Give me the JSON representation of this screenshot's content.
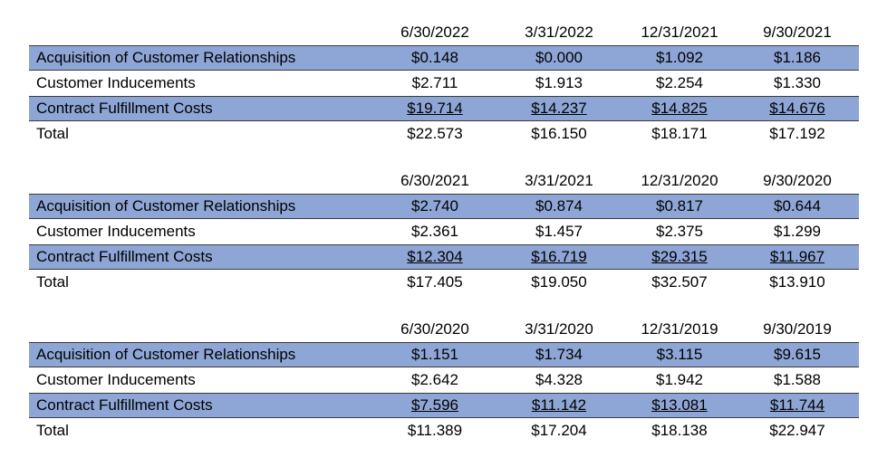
{
  "tables": [
    {
      "columns": [
        "6/30/2022",
        "3/31/2022",
        "12/31/2021",
        "9/30/2021"
      ],
      "rows": [
        {
          "label": "Acquisition of Customer Relationships",
          "values": [
            "$0.148",
            "$0.000",
            "$1.092",
            "$1.186"
          ]
        },
        {
          "label": "Customer Inducements",
          "values": [
            "$2.711",
            "$1.913",
            "$2.254",
            "$1.330"
          ]
        },
        {
          "label": "Contract Fulfillment Costs",
          "values": [
            "$19.714",
            "$14.237",
            "$14.825",
            "$14.676"
          ]
        },
        {
          "label": "Total",
          "values": [
            "$22.573",
            "$16.150",
            "$18.171",
            "$17.192"
          ]
        }
      ]
    },
    {
      "columns": [
        "6/30/2021",
        "3/31/2021",
        "12/31/2020",
        "9/30/2020"
      ],
      "rows": [
        {
          "label": "Acquisition of Customer Relationships",
          "values": [
            "$2.740",
            "$0.874",
            "$0.817",
            "$0.644"
          ]
        },
        {
          "label": "Customer Inducements",
          "values": [
            "$2.361",
            "$1.457",
            "$2.375",
            "$1.299"
          ]
        },
        {
          "label": "Contract Fulfillment Costs",
          "values": [
            "$12.304",
            "$16.719",
            "$29.315",
            "$11.967"
          ]
        },
        {
          "label": "Total",
          "values": [
            "$17.405",
            "$19.050",
            "$32.507",
            "$13.910"
          ]
        }
      ]
    },
    {
      "columns": [
        "6/30/2020",
        "3/31/2020",
        "12/31/2019",
        "9/30/2019"
      ],
      "rows": [
        {
          "label": "Acquisition of Customer Relationships",
          "values": [
            "$1.151",
            "$1.734",
            "$3.115",
            "$9.615"
          ]
        },
        {
          "label": "Customer Inducements",
          "values": [
            "$2.642",
            "$4.328",
            "$1.942",
            "$1.588"
          ]
        },
        {
          "label": "Contract Fulfillment Costs",
          "values": [
            "$7.596",
            "$11.142",
            "$13.081",
            "$11.744"
          ]
        },
        {
          "label": "Total",
          "values": [
            "$11.389",
            "$17.204",
            "$18.138",
            "$22.947"
          ]
        }
      ]
    }
  ]
}
